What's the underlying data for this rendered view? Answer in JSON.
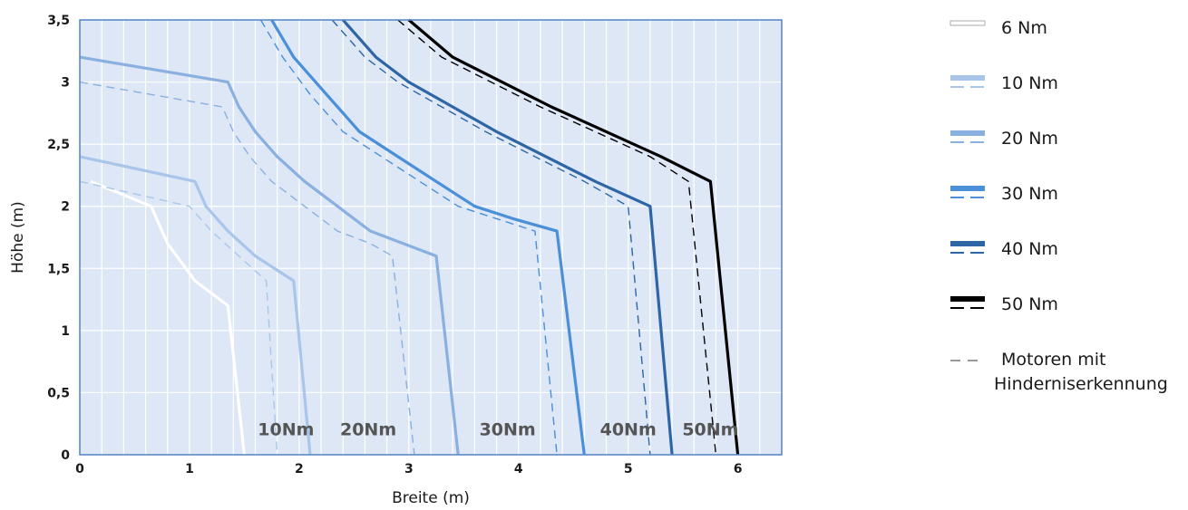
{
  "chart_data": {
    "type": "line",
    "xlabel": "Breite (m)",
    "ylabel": "Höhe (m)",
    "xlim": [
      0,
      6.4
    ],
    "ylim": [
      0,
      3.5
    ],
    "x_ticks": [
      "0",
      "1",
      "2",
      "3",
      "4",
      "5",
      "6"
    ],
    "y_ticks": [
      "0",
      "0,5",
      "1",
      "1,5",
      "2",
      "2,5",
      "3",
      "3,5"
    ],
    "grid": true,
    "background_color": "#dde7f6",
    "grid_color": "#ffffff",
    "frame_color": "#5b8ac8",
    "series": [
      {
        "name": "6 Nm",
        "color": "#ffffff",
        "style": "solid",
        "x": [
          0.1,
          0.65,
          0.8,
          1.05,
          1.35,
          1.5
        ],
        "y": [
          2.2,
          2.0,
          1.7,
          1.4,
          1.2,
          0
        ]
      },
      {
        "name": "10 Nm",
        "color": "#a9c6ea",
        "style": "solid",
        "x": [
          0,
          1.05,
          1.15,
          1.35,
          1.6,
          1.95,
          2.1
        ],
        "y": [
          2.4,
          2.2,
          2.0,
          1.8,
          1.6,
          1.4,
          0
        ]
      },
      {
        "name": "10 Nm",
        "color": "#a9c6ea",
        "style": "dashed",
        "x": [
          0,
          1.0,
          1.2,
          1.45,
          1.7,
          1.8
        ],
        "y": [
          2.2,
          2.0,
          1.8,
          1.6,
          1.4,
          0
        ]
      },
      {
        "name": "20 Nm",
        "color": "#8ab0e0",
        "style": "solid",
        "x": [
          0,
          1.35,
          1.45,
          1.6,
          1.8,
          2.05,
          2.35,
          2.65,
          2.95,
          3.25,
          3.45
        ],
        "y": [
          3.2,
          3.0,
          2.8,
          2.6,
          2.4,
          2.2,
          2.0,
          1.8,
          1.7,
          1.6,
          0
        ]
      },
      {
        "name": "20 Nm",
        "color": "#8ab0e0",
        "style": "dashed",
        "x": [
          0,
          1.3,
          1.4,
          1.55,
          1.75,
          2.05,
          2.35,
          2.65,
          2.85,
          3.05
        ],
        "y": [
          3.0,
          2.8,
          2.6,
          2.4,
          2.2,
          2.0,
          1.8,
          1.7,
          1.6,
          0
        ]
      },
      {
        "name": "30 Nm",
        "color": "#4a8fd8",
        "style": "solid",
        "x": [
          1.75,
          1.95,
          2.25,
          2.55,
          2.9,
          3.25,
          3.6,
          3.95,
          4.35,
          4.6
        ],
        "y": [
          3.5,
          3.2,
          2.9,
          2.6,
          2.4,
          2.2,
          2.0,
          1.9,
          1.8,
          0
        ]
      },
      {
        "name": "30 Nm",
        "color": "#4a8fd8",
        "style": "dashed",
        "x": [
          1.65,
          1.85,
          2.1,
          2.4,
          2.75,
          3.1,
          3.45,
          3.8,
          4.15,
          4.35
        ],
        "y": [
          3.5,
          3.2,
          2.9,
          2.6,
          2.4,
          2.2,
          2.0,
          1.9,
          1.8,
          0
        ]
      },
      {
        "name": "40 Nm",
        "color": "#2e65a5",
        "style": "solid",
        "x": [
          2.4,
          2.7,
          3.0,
          3.4,
          3.8,
          4.25,
          4.7,
          5.2,
          5.4
        ],
        "y": [
          3.5,
          3.2,
          3.0,
          2.8,
          2.6,
          2.4,
          2.2,
          2.0,
          0
        ]
      },
      {
        "name": "40 Nm",
        "color": "#2e65a5",
        "style": "dashed",
        "x": [
          2.3,
          2.6,
          2.9,
          3.3,
          3.7,
          4.15,
          4.6,
          5.0,
          5.2
        ],
        "y": [
          3.5,
          3.2,
          3.0,
          2.8,
          2.6,
          2.4,
          2.2,
          2.0,
          0
        ]
      },
      {
        "name": "50 Nm",
        "color": "#000000",
        "style": "solid",
        "x": [
          3.0,
          3.4,
          3.85,
          4.3,
          4.8,
          5.3,
          5.75,
          6.0
        ],
        "y": [
          3.5,
          3.2,
          3.0,
          2.8,
          2.6,
          2.4,
          2.2,
          0
        ]
      },
      {
        "name": "50 Nm",
        "color": "#000000",
        "style": "dashed",
        "x": [
          2.9,
          3.3,
          3.75,
          4.2,
          4.7,
          5.2,
          5.55,
          5.8
        ],
        "y": [
          3.5,
          3.2,
          3.0,
          2.8,
          2.6,
          2.4,
          2.2,
          0
        ]
      }
    ],
    "curve_labels": [
      {
        "text": "10Nm",
        "x": 1.88,
        "y": 0.2
      },
      {
        "text": "20Nm",
        "x": 2.63,
        "y": 0.2
      },
      {
        "text": "30Nm",
        "x": 3.9,
        "y": 0.2
      },
      {
        "text": "40Nm",
        "x": 5.0,
        "y": 0.2
      },
      {
        "text": "50Nm",
        "x": 5.75,
        "y": 0.2
      }
    ],
    "legend": {
      "placement": "right",
      "entries": [
        {
          "label": "6 Nm",
          "color": "#ffffff",
          "outline": "#aaaaaa",
          "dashed": false
        },
        {
          "label": "10 Nm",
          "color": "#a9c6ea",
          "dashed": true
        },
        {
          "label": "20 Nm",
          "color": "#8ab0e0",
          "dashed": true
        },
        {
          "label": "30 Nm",
          "color": "#4a8fd8",
          "dashed": true
        },
        {
          "label": "40 Nm",
          "color": "#2e65a5",
          "dashed": true
        },
        {
          "label": "50 Nm",
          "color": "#000000",
          "dashed": true
        },
        {
          "label": "Motoren mit",
          "label2": "Hinderniserkennung",
          "color": "#999999",
          "dash_only": true
        }
      ]
    }
  }
}
